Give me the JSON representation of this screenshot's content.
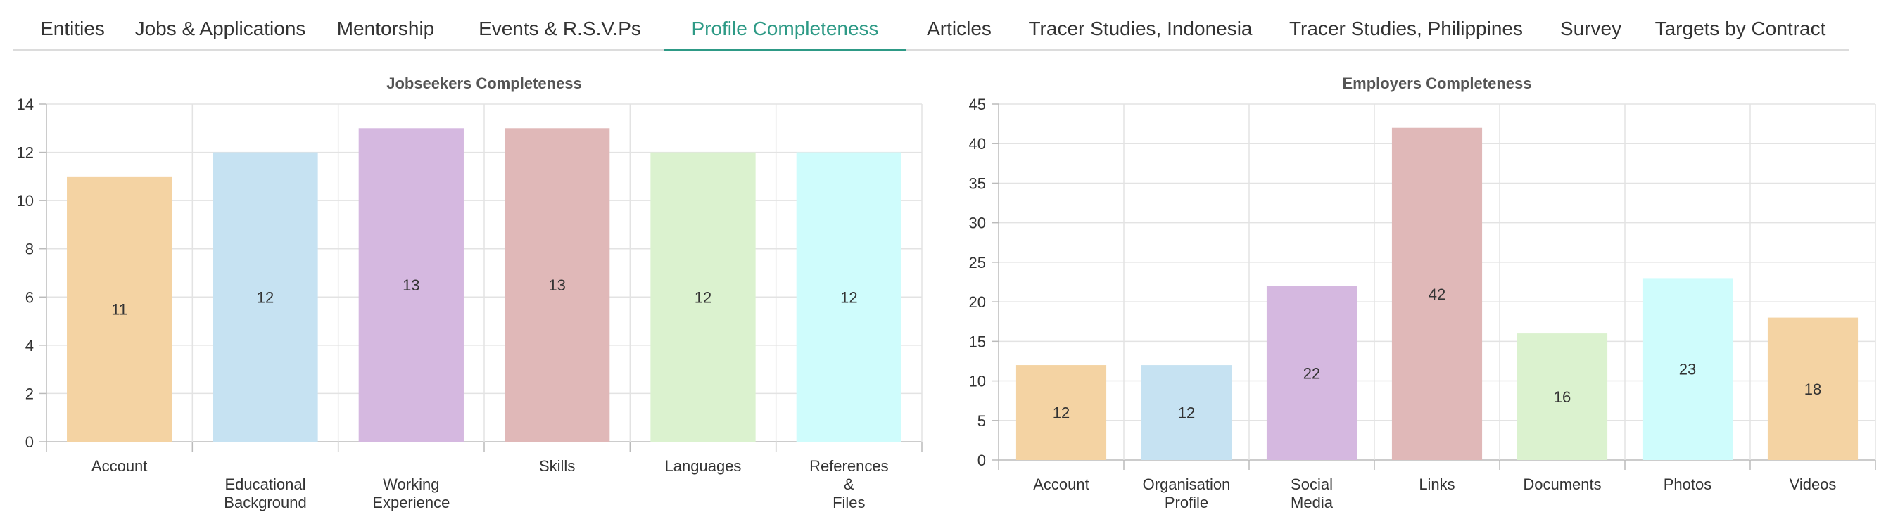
{
  "tabs": [
    {
      "label": "Entities",
      "active": false
    },
    {
      "label": "Jobs & Applications",
      "active": false
    },
    {
      "label": "Mentorship",
      "active": false
    },
    {
      "label": "Events & R.S.V.Ps",
      "active": false
    },
    {
      "label": "Profile Completeness",
      "active": true
    },
    {
      "label": "Articles",
      "active": false
    },
    {
      "label": "Tracer Studies, Indonesia",
      "active": false
    },
    {
      "label": "Tracer Studies, Philippines",
      "active": false
    },
    {
      "label": "Survey",
      "active": false
    },
    {
      "label": "Targets by Contract",
      "active": false
    }
  ],
  "colors": {
    "active_tab": "#2e9a86",
    "palette": [
      "#f4d3a3",
      "#c6e2f2",
      "#d5b8e0",
      "#e0b8b8",
      "#dbf2cf",
      "#cffcfc"
    ]
  },
  "chart_data": [
    {
      "type": "bar",
      "title": "Jobseekers Completeness",
      "categories": [
        [
          "Account"
        ],
        [
          "Educational",
          "Background"
        ],
        [
          "Working",
          "Experience"
        ],
        [
          "Skills"
        ],
        [
          "Languages"
        ],
        [
          "References",
          "&",
          "Files"
        ]
      ],
      "values": [
        11,
        12,
        13,
        13,
        12,
        12
      ],
      "ylim": [
        0,
        14
      ],
      "yticks": [
        0,
        2,
        4,
        6,
        8,
        10,
        12,
        14
      ],
      "grid": true,
      "legend": "none"
    },
    {
      "type": "bar",
      "title": "Employers Completeness",
      "categories": [
        [
          "Account"
        ],
        [
          "Organisation",
          "Profile"
        ],
        [
          "Social",
          "Media"
        ],
        [
          "Links"
        ],
        [
          "Documents"
        ],
        [
          "Photos"
        ],
        [
          "Videos"
        ]
      ],
      "values": [
        12,
        12,
        22,
        42,
        16,
        23,
        18
      ],
      "ylim": [
        0,
        45
      ],
      "yticks": [
        0,
        5,
        10,
        15,
        20,
        25,
        30,
        35,
        40,
        45
      ],
      "grid": true,
      "legend": "none"
    }
  ]
}
